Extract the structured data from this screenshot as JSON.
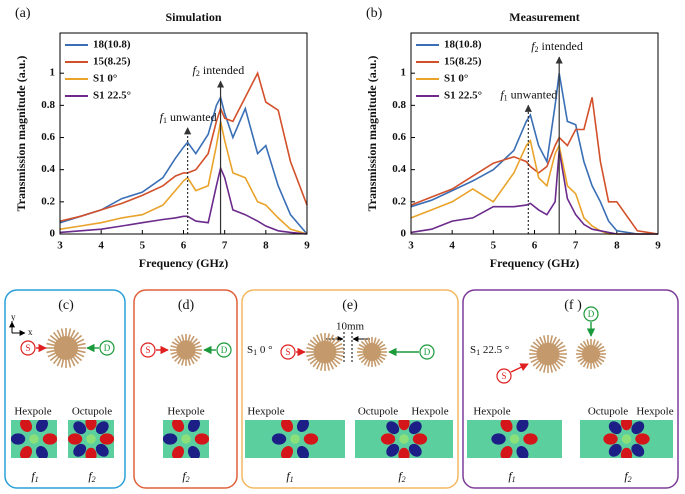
{
  "chart_data": [
    {
      "type": "line",
      "panel": "(a)",
      "title": "Simulation",
      "xlabel": "Frequency (GHz)",
      "ylabel": "Transmission magnitude (a.u.)",
      "xlim": [
        3,
        9
      ],
      "xticks": [
        3,
        4,
        5,
        6,
        7,
        8,
        9
      ],
      "ylim": [
        0,
        1.25
      ],
      "yticks": [
        0,
        0.2,
        0.4,
        0.6,
        0.8,
        1
      ],
      "x": [
        3,
        3.5,
        4,
        4.5,
        5,
        5.5,
        5.8,
        6,
        6.1,
        6.3,
        6.6,
        6.8,
        6.9,
        7,
        7.2,
        7.5,
        7.8,
        8,
        8.3,
        8.6,
        9
      ],
      "series": [
        {
          "name": "18(10.8)",
          "color": "#3a6fb5",
          "values": [
            0.07,
            0.11,
            0.15,
            0.22,
            0.26,
            0.35,
            0.47,
            0.54,
            0.57,
            0.5,
            0.62,
            0.8,
            0.85,
            0.75,
            0.6,
            0.78,
            0.5,
            0.55,
            0.3,
            0.12,
            0.0
          ]
        },
        {
          "name": "15(8.25)",
          "color": "#d2502a",
          "values": [
            0.08,
            0.11,
            0.15,
            0.19,
            0.24,
            0.3,
            0.36,
            0.38,
            0.38,
            0.4,
            0.5,
            0.7,
            0.78,
            0.72,
            0.7,
            0.85,
            1.0,
            0.82,
            0.77,
            0.45,
            0.18
          ]
        },
        {
          "name": "S1 0°",
          "color": "#eaa32a",
          "values": [
            0.03,
            0.05,
            0.07,
            0.1,
            0.12,
            0.18,
            0.27,
            0.33,
            0.35,
            0.27,
            0.3,
            0.55,
            0.7,
            0.58,
            0.38,
            0.35,
            0.2,
            0.18,
            0.1,
            0.03,
            0.0
          ]
        },
        {
          "name": "S1 22.5°",
          "color": "#6b2a8c",
          "values": [
            0.01,
            0.02,
            0.03,
            0.05,
            0.07,
            0.09,
            0.1,
            0.11,
            0.11,
            0.08,
            0.07,
            0.3,
            0.41,
            0.35,
            0.15,
            0.12,
            0.08,
            0.05,
            0.02,
            0.01,
            0.0
          ]
        }
      ],
      "annotations": [
        {
          "x": 6.9,
          "y": 0.95,
          "dashed": false,
          "symbol": "f",
          "sub": "2",
          "text": " intended"
        },
        {
          "x": 6.1,
          "y": 0.66,
          "dashed": true,
          "symbol": "f",
          "sub": "1",
          "text": " unwanted"
        }
      ]
    },
    {
      "type": "line",
      "panel": "(b)",
      "title": "Measurement",
      "xlabel": "Frequency (GHz)",
      "ylabel": "Transmission magnitude (a.u.)",
      "xlim": [
        3,
        9
      ],
      "xticks": [
        3,
        4,
        5,
        6,
        7,
        8,
        9
      ],
      "ylim": [
        0,
        1.25
      ],
      "yticks": [
        0,
        0.2,
        0.4,
        0.6,
        0.8,
        1
      ],
      "x": [
        3,
        3.5,
        4,
        4.5,
        5,
        5.5,
        5.8,
        5.9,
        6.1,
        6.3,
        6.5,
        6.6,
        6.8,
        7,
        7.2,
        7.4,
        7.6,
        7.8,
        8,
        8.5,
        9
      ],
      "series": [
        {
          "name": "18(10.8)",
          "color": "#3a6fb5",
          "values": [
            0.17,
            0.21,
            0.27,
            0.33,
            0.4,
            0.52,
            0.7,
            0.74,
            0.55,
            0.45,
            0.8,
            1.0,
            0.7,
            0.68,
            0.45,
            0.3,
            0.2,
            0.08,
            0.02,
            0.0,
            0.0
          ]
        },
        {
          "name": "15(8.25)",
          "color": "#d2502a",
          "values": [
            0.18,
            0.23,
            0.28,
            0.36,
            0.44,
            0.48,
            0.45,
            0.42,
            0.38,
            0.42,
            0.55,
            0.6,
            0.55,
            0.65,
            0.65,
            0.85,
            0.45,
            0.2,
            0.2,
            0.02,
            0.0
          ]
        },
        {
          "name": "S1 0°",
          "color": "#eaa32a",
          "values": [
            0.1,
            0.15,
            0.2,
            0.28,
            0.2,
            0.38,
            0.55,
            0.58,
            0.35,
            0.3,
            0.5,
            0.55,
            0.3,
            0.25,
            0.1,
            0.05,
            0.02,
            0.0,
            0.0,
            0.0,
            0.0
          ]
        },
        {
          "name": "S1 22.5°",
          "color": "#6b2a8c",
          "values": [
            0.01,
            0.03,
            0.08,
            0.1,
            0.17,
            0.17,
            0.18,
            0.19,
            0.15,
            0.12,
            0.2,
            0.52,
            0.22,
            0.12,
            0.06,
            0.03,
            0.02,
            0.01,
            0.0,
            0.0,
            0.0
          ]
        }
      ],
      "annotations": [
        {
          "x": 6.6,
          "y": 1.1,
          "dashed": false,
          "symbol": "f",
          "sub": "2",
          "text": " intended"
        },
        {
          "x": 5.85,
          "y": 0.8,
          "dashed": true,
          "symbol": "f",
          "sub": "1",
          "text": " unwanted"
        }
      ]
    }
  ],
  "panels": [
    {
      "label": "(c)",
      "axes": [
        "y",
        "x"
      ],
      "source": "S",
      "detector": "D",
      "modes": [
        "Hexpole",
        "Octupole"
      ],
      "freqs": [
        {
          "symbol": "f",
          "sub": "1"
        },
        {
          "symbol": "f",
          "sub": "2"
        }
      ]
    },
    {
      "label": "(d)",
      "source": "S",
      "detector": "D",
      "modes": [
        "Hexpole"
      ],
      "freqs": [
        {
          "symbol": "f",
          "sub": "2"
        }
      ]
    },
    {
      "label": "(e)",
      "note": {
        "symbol": "S",
        "sub": "1",
        "text": " 0 °"
      },
      "gap": "10mm",
      "source": "S",
      "detector": "D",
      "modes": [
        "Hexpole",
        "Octupole",
        "Hexpole"
      ],
      "freqs": [
        {
          "symbol": "f",
          "sub": "1"
        },
        {
          "symbol": "f",
          "sub": "2"
        }
      ]
    },
    {
      "label": "(f )",
      "note": {
        "symbol": "S",
        "sub": "1",
        "text": " 22.5 °"
      },
      "source": "S",
      "detector": "D",
      "modes": [
        "Hexpole",
        "Octupole",
        "Hexpole"
      ],
      "freqs": [
        {
          "symbol": "f",
          "sub": "1"
        },
        {
          "symbol": "f",
          "sub": "2"
        }
      ]
    }
  ]
}
